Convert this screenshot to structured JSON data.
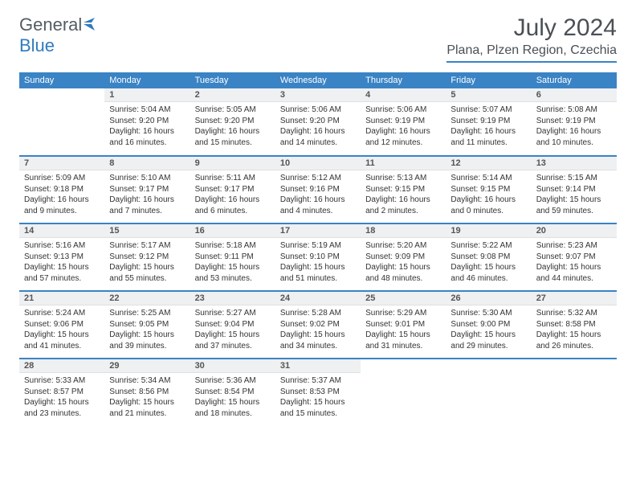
{
  "brand": {
    "part1": "General",
    "part2": "Blue"
  },
  "title": "July 2024",
  "location": "Plana, Plzen Region, Czechia",
  "colors": {
    "header_bg": "#3a83c5",
    "header_fg": "#ffffff",
    "daynum_bg": "#eef0f2",
    "rule": "#3a83c5",
    "text": "#333333",
    "brand_gray": "#555c63",
    "brand_blue": "#2f7bbf",
    "background": "#ffffff"
  },
  "weekday_labels": [
    "Sunday",
    "Monday",
    "Tuesday",
    "Wednesday",
    "Thursday",
    "Friday",
    "Saturday"
  ],
  "weeks": [
    [
      null,
      {
        "n": "1",
        "sunrise": "5:04 AM",
        "sunset": "9:20 PM",
        "daylight": "16 hours and 16 minutes."
      },
      {
        "n": "2",
        "sunrise": "5:05 AM",
        "sunset": "9:20 PM",
        "daylight": "16 hours and 15 minutes."
      },
      {
        "n": "3",
        "sunrise": "5:06 AM",
        "sunset": "9:20 PM",
        "daylight": "16 hours and 14 minutes."
      },
      {
        "n": "4",
        "sunrise": "5:06 AM",
        "sunset": "9:19 PM",
        "daylight": "16 hours and 12 minutes."
      },
      {
        "n": "5",
        "sunrise": "5:07 AM",
        "sunset": "9:19 PM",
        "daylight": "16 hours and 11 minutes."
      },
      {
        "n": "6",
        "sunrise": "5:08 AM",
        "sunset": "9:19 PM",
        "daylight": "16 hours and 10 minutes."
      }
    ],
    [
      {
        "n": "7",
        "sunrise": "5:09 AM",
        "sunset": "9:18 PM",
        "daylight": "16 hours and 9 minutes."
      },
      {
        "n": "8",
        "sunrise": "5:10 AM",
        "sunset": "9:17 PM",
        "daylight": "16 hours and 7 minutes."
      },
      {
        "n": "9",
        "sunrise": "5:11 AM",
        "sunset": "9:17 PM",
        "daylight": "16 hours and 6 minutes."
      },
      {
        "n": "10",
        "sunrise": "5:12 AM",
        "sunset": "9:16 PM",
        "daylight": "16 hours and 4 minutes."
      },
      {
        "n": "11",
        "sunrise": "5:13 AM",
        "sunset": "9:15 PM",
        "daylight": "16 hours and 2 minutes."
      },
      {
        "n": "12",
        "sunrise": "5:14 AM",
        "sunset": "9:15 PM",
        "daylight": "16 hours and 0 minutes."
      },
      {
        "n": "13",
        "sunrise": "5:15 AM",
        "sunset": "9:14 PM",
        "daylight": "15 hours and 59 minutes."
      }
    ],
    [
      {
        "n": "14",
        "sunrise": "5:16 AM",
        "sunset": "9:13 PM",
        "daylight": "15 hours and 57 minutes."
      },
      {
        "n": "15",
        "sunrise": "5:17 AM",
        "sunset": "9:12 PM",
        "daylight": "15 hours and 55 minutes."
      },
      {
        "n": "16",
        "sunrise": "5:18 AM",
        "sunset": "9:11 PM",
        "daylight": "15 hours and 53 minutes."
      },
      {
        "n": "17",
        "sunrise": "5:19 AM",
        "sunset": "9:10 PM",
        "daylight": "15 hours and 51 minutes."
      },
      {
        "n": "18",
        "sunrise": "5:20 AM",
        "sunset": "9:09 PM",
        "daylight": "15 hours and 48 minutes."
      },
      {
        "n": "19",
        "sunrise": "5:22 AM",
        "sunset": "9:08 PM",
        "daylight": "15 hours and 46 minutes."
      },
      {
        "n": "20",
        "sunrise": "5:23 AM",
        "sunset": "9:07 PM",
        "daylight": "15 hours and 44 minutes."
      }
    ],
    [
      {
        "n": "21",
        "sunrise": "5:24 AM",
        "sunset": "9:06 PM",
        "daylight": "15 hours and 41 minutes."
      },
      {
        "n": "22",
        "sunrise": "5:25 AM",
        "sunset": "9:05 PM",
        "daylight": "15 hours and 39 minutes."
      },
      {
        "n": "23",
        "sunrise": "5:27 AM",
        "sunset": "9:04 PM",
        "daylight": "15 hours and 37 minutes."
      },
      {
        "n": "24",
        "sunrise": "5:28 AM",
        "sunset": "9:02 PM",
        "daylight": "15 hours and 34 minutes."
      },
      {
        "n": "25",
        "sunrise": "5:29 AM",
        "sunset": "9:01 PM",
        "daylight": "15 hours and 31 minutes."
      },
      {
        "n": "26",
        "sunrise": "5:30 AM",
        "sunset": "9:00 PM",
        "daylight": "15 hours and 29 minutes."
      },
      {
        "n": "27",
        "sunrise": "5:32 AM",
        "sunset": "8:58 PM",
        "daylight": "15 hours and 26 minutes."
      }
    ],
    [
      {
        "n": "28",
        "sunrise": "5:33 AM",
        "sunset": "8:57 PM",
        "daylight": "15 hours and 23 minutes."
      },
      {
        "n": "29",
        "sunrise": "5:34 AM",
        "sunset": "8:56 PM",
        "daylight": "15 hours and 21 minutes."
      },
      {
        "n": "30",
        "sunrise": "5:36 AM",
        "sunset": "8:54 PM",
        "daylight": "15 hours and 18 minutes."
      },
      {
        "n": "31",
        "sunrise": "5:37 AM",
        "sunset": "8:53 PM",
        "daylight": "15 hours and 15 minutes."
      },
      null,
      null,
      null
    ]
  ],
  "labels": {
    "sunrise": "Sunrise: ",
    "sunset": "Sunset: ",
    "daylight": "Daylight: "
  }
}
